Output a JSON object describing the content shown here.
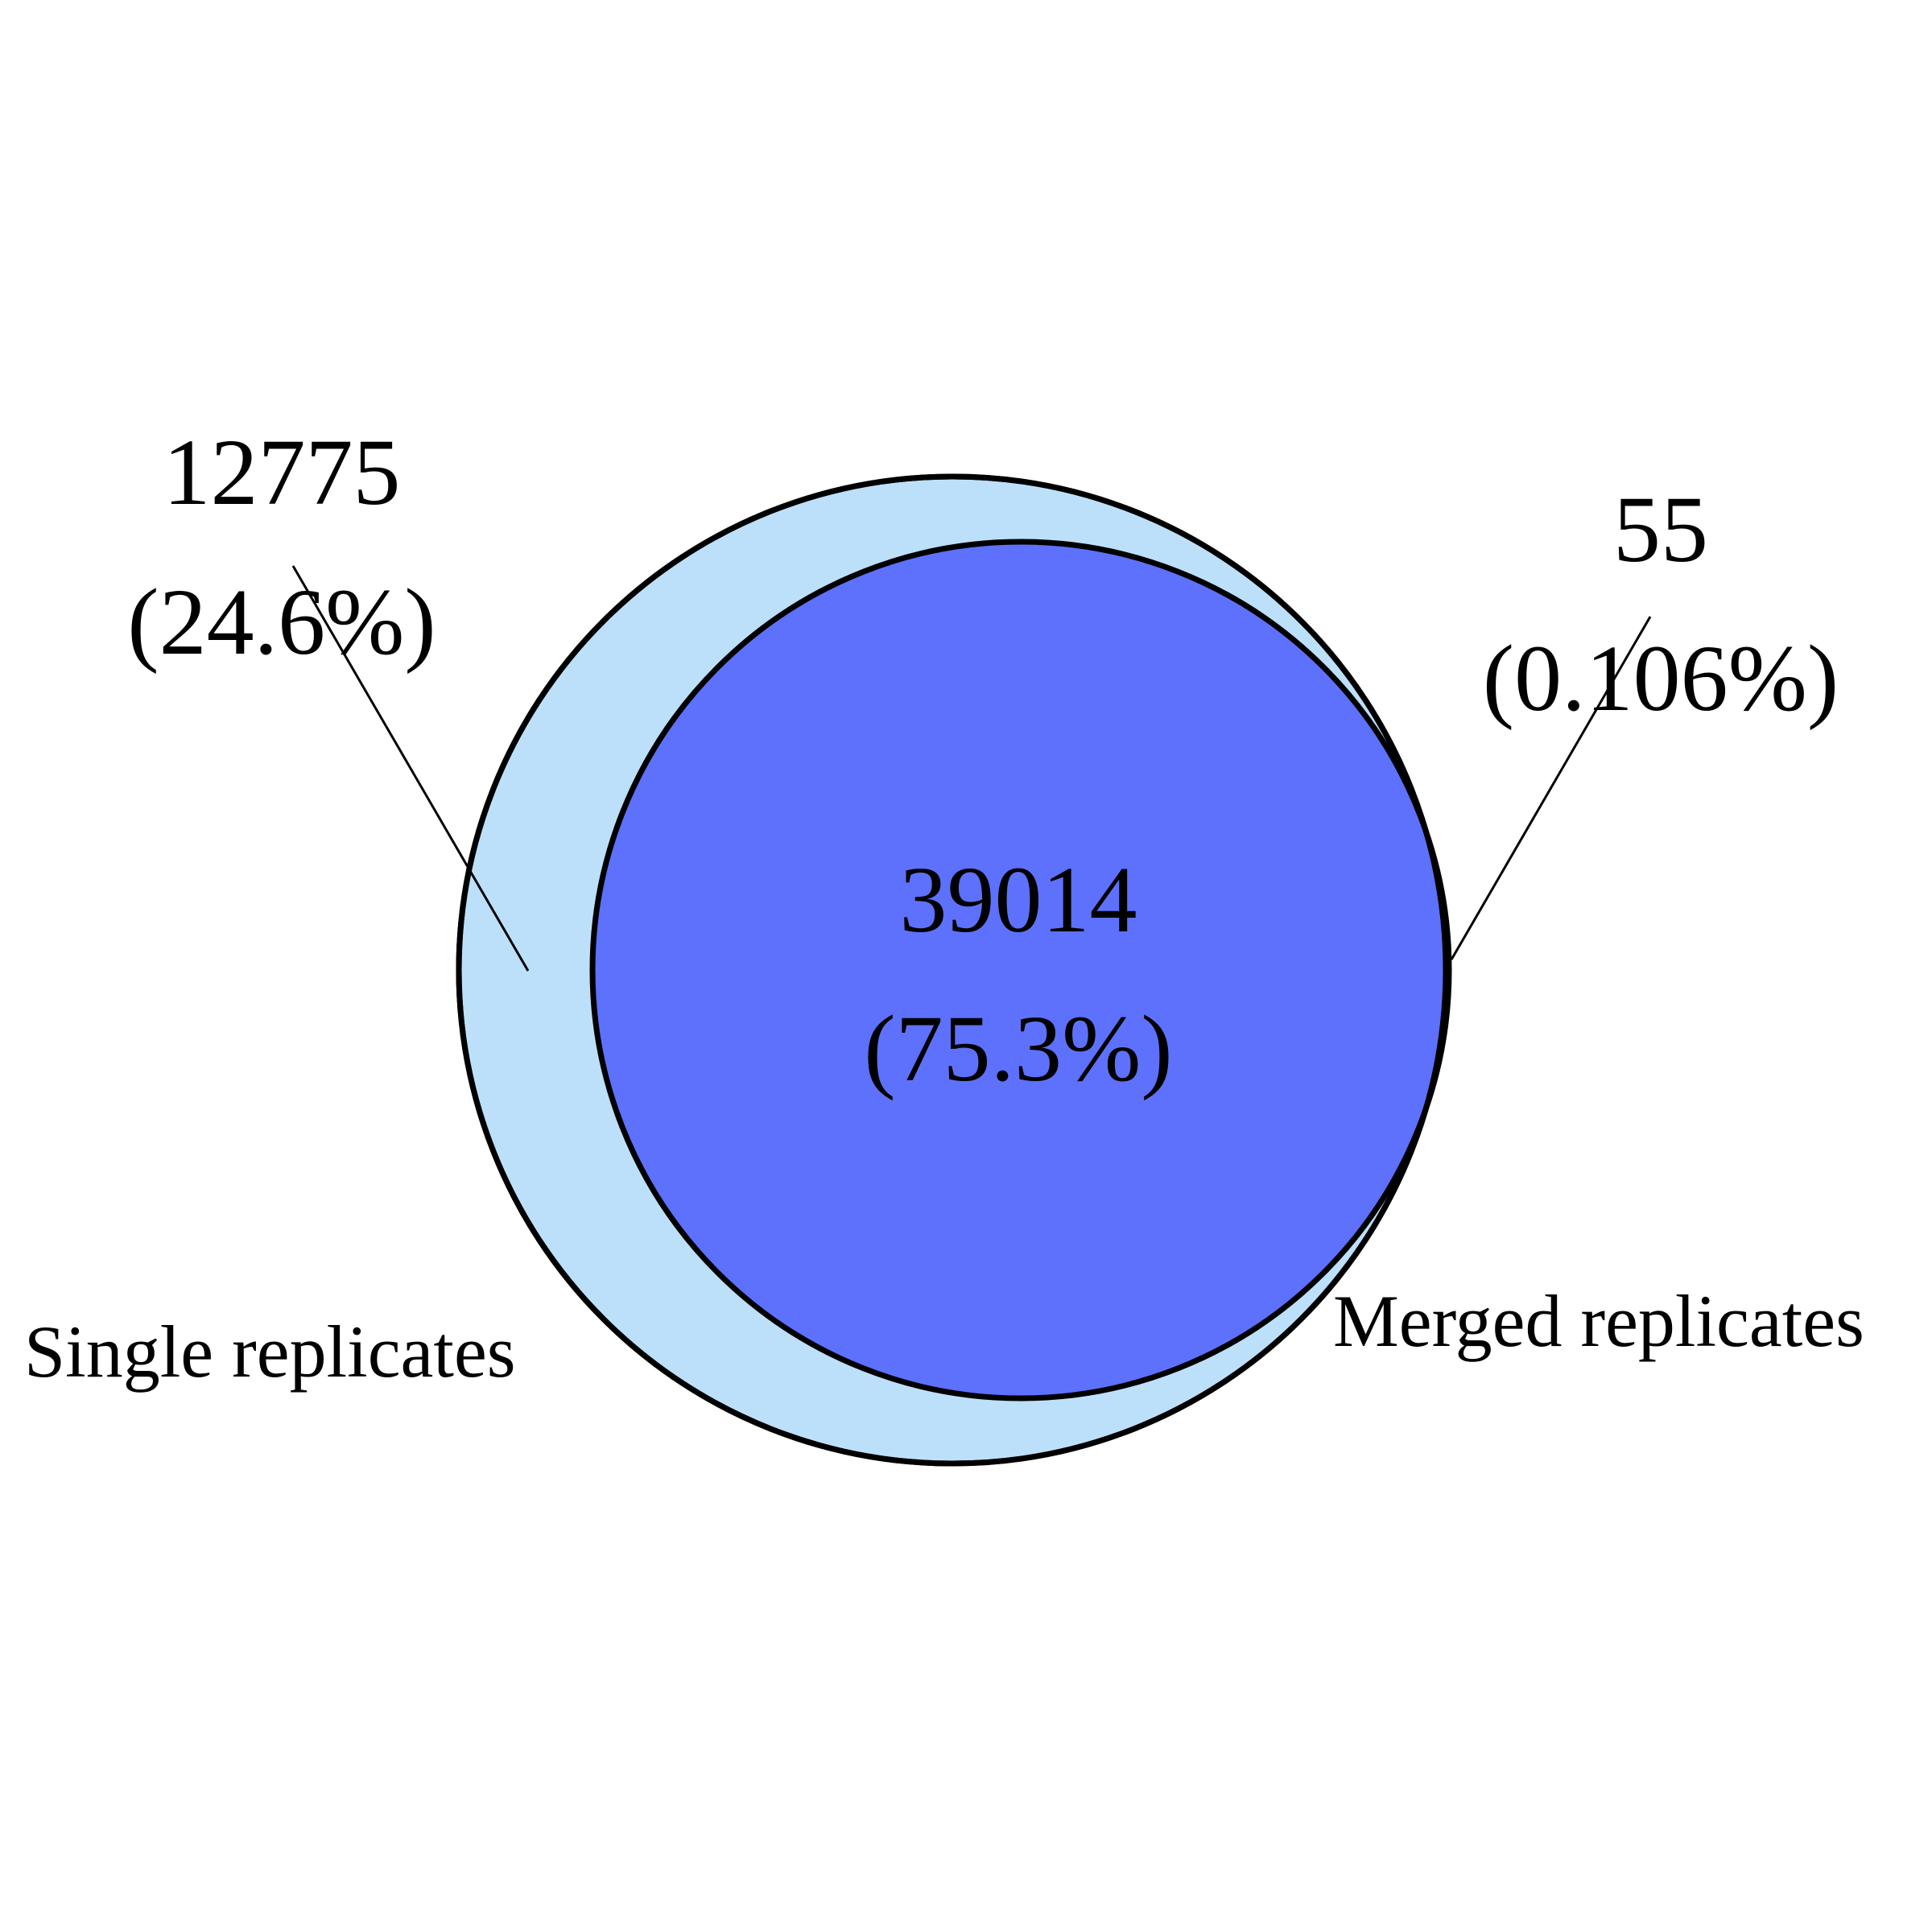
{
  "sets": [
    {
      "name": "Single replicates",
      "color": "#bde0fa"
    },
    {
      "name": "Merged replicates",
      "color": "#5d71fd"
    }
  ],
  "regions": {
    "single_only": {
      "count": "12775",
      "percent": "(24.6%)"
    },
    "both": {
      "count": "39014",
      "percent": "(75.3%)"
    },
    "merged_only": {
      "count": "55",
      "percent": "(0.106%)"
    }
  },
  "outline_color": "#000000"
}
